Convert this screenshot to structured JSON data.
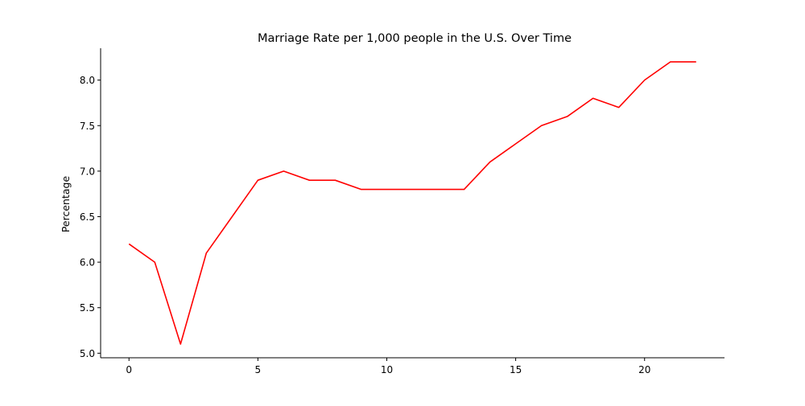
{
  "chart_data": {
    "type": "line",
    "title": "Marriage Rate per 1,000 people in the U.S. Over Time",
    "xlabel": "",
    "ylabel": "Percentage",
    "x": [
      0,
      1,
      2,
      3,
      4,
      5,
      6,
      7,
      8,
      9,
      10,
      11,
      12,
      13,
      14,
      15,
      16,
      17,
      18,
      19,
      20,
      21,
      22
    ],
    "series": [
      {
        "values": [
          6.2,
          6.0,
          5.1,
          6.1,
          6.5,
          6.9,
          7.0,
          6.9,
          6.9,
          6.8,
          6.8,
          6.8,
          6.8,
          6.8,
          7.1,
          7.3,
          7.5,
          7.6,
          7.8,
          7.7,
          8.0,
          8.2,
          8.2
        ],
        "color": "#ff0000"
      }
    ],
    "xlim": [
      -1.1,
      23.1
    ],
    "ylim": [
      4.95,
      8.35
    ],
    "xticks": [
      0,
      5,
      10,
      15,
      20
    ],
    "xtick_labels": [
      "0",
      "5",
      "10",
      "15",
      "20"
    ],
    "yticks": [
      5.0,
      5.5,
      6.0,
      6.5,
      7.0,
      7.5,
      8.0
    ],
    "ytick_labels": [
      "5.0",
      "5.5",
      "6.0",
      "6.5",
      "7.0",
      "7.5",
      "8.0"
    ],
    "grid": false,
    "spines": "left-bottom"
  }
}
